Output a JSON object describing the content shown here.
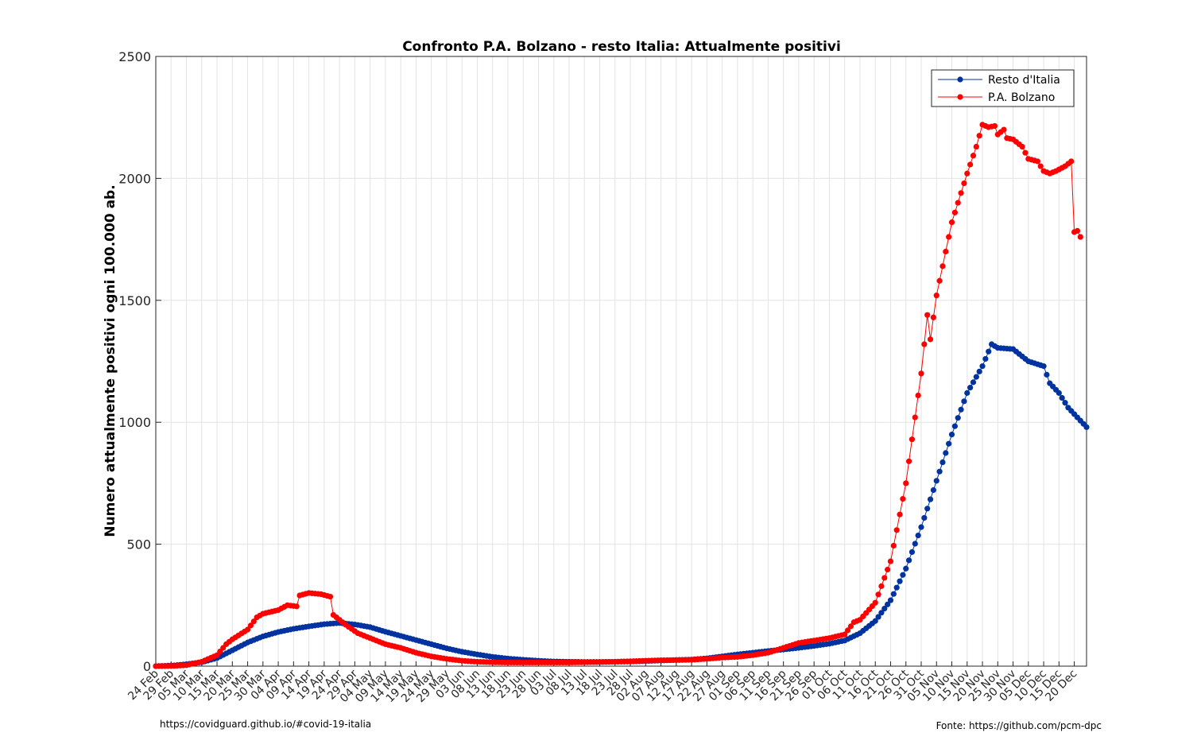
{
  "footer": {
    "left": "https://covidguard.github.io/#covid-19-italia",
    "right": "Fonte: https://github.com/pcm-dpc"
  },
  "chart_data": {
    "type": "line",
    "title": "Confronto P.A. Bolzano - resto Italia: Attualmente positivi",
    "xlabel": "",
    "ylabel": "Numero attualmente positivi ogni 100.000 ab.",
    "ylim": [
      0,
      2500
    ],
    "yticks": [
      0,
      500,
      1000,
      1500,
      2000,
      2500
    ],
    "grid": true,
    "legend_position": "top-right",
    "x_start": "2020-02-24",
    "x_end": "2020-12-24",
    "xtick_labels": [
      "24 Feb",
      "29 Feb",
      "05 Mar",
      "10 Mar",
      "15 Mar",
      "20 Mar",
      "25 Mar",
      "30 Mar",
      "04 Apr",
      "09 Apr",
      "14 Apr",
      "19 Apr",
      "24 Apr",
      "29 Apr",
      "04 May",
      "09 May",
      "14 May",
      "19 May",
      "24 May",
      "29 May",
      "03 Jun",
      "08 Jun",
      "13 Jun",
      "18 Jun",
      "23 Jun",
      "28 Jun",
      "03 Jul",
      "08 Jul",
      "13 Jul",
      "18 Jul",
      "23 Jul",
      "28 Jul",
      "02 Aug",
      "07 Aug",
      "12 Aug",
      "17 Aug",
      "22 Aug",
      "27 Aug",
      "01 Sep",
      "06 Sep",
      "11 Sep",
      "16 Sep",
      "21 Sep",
      "26 Sep",
      "01 Oct",
      "06 Oct",
      "11 Oct",
      "16 Oct",
      "21 Oct",
      "26 Oct",
      "31 Oct",
      "05 Nov",
      "10 Nov",
      "15 Nov",
      "20 Nov",
      "25 Nov",
      "30 Nov",
      "05 Dec",
      "10 Dec",
      "15 Dec",
      "20 Dec"
    ],
    "series": [
      {
        "name": "Resto d'Italia",
        "color": "#0033a0",
        "points": [
          [
            "2020-02-24",
            0
          ],
          [
            "2020-03-01",
            3
          ],
          [
            "2020-03-05",
            8
          ],
          [
            "2020-03-10",
            16
          ],
          [
            "2020-03-15",
            33
          ],
          [
            "2020-03-20",
            65
          ],
          [
            "2020-03-25",
            97
          ],
          [
            "2020-03-30",
            122
          ],
          [
            "2020-04-04",
            140
          ],
          [
            "2020-04-09",
            153
          ],
          [
            "2020-04-14",
            163
          ],
          [
            "2020-04-19",
            172
          ],
          [
            "2020-04-24",
            177
          ],
          [
            "2020-04-29",
            171
          ],
          [
            "2020-05-04",
            160
          ],
          [
            "2020-05-09",
            141
          ],
          [
            "2020-05-14",
            124
          ],
          [
            "2020-05-19",
            107
          ],
          [
            "2020-05-24",
            90
          ],
          [
            "2020-05-29",
            73
          ],
          [
            "2020-06-03",
            59
          ],
          [
            "2020-06-08",
            48
          ],
          [
            "2020-06-13",
            38
          ],
          [
            "2020-06-18",
            31
          ],
          [
            "2020-06-23",
            26
          ],
          [
            "2020-06-28",
            22
          ],
          [
            "2020-07-03",
            19
          ],
          [
            "2020-07-08",
            18
          ],
          [
            "2020-07-13",
            17
          ],
          [
            "2020-07-18",
            17
          ],
          [
            "2020-07-23",
            18
          ],
          [
            "2020-07-28",
            19
          ],
          [
            "2020-08-02",
            21
          ],
          [
            "2020-08-07",
            23
          ],
          [
            "2020-08-12",
            25
          ],
          [
            "2020-08-17",
            27
          ],
          [
            "2020-08-22",
            32
          ],
          [
            "2020-08-27",
            40
          ],
          [
            "2020-09-01",
            48
          ],
          [
            "2020-09-06",
            55
          ],
          [
            "2020-09-11",
            62
          ],
          [
            "2020-09-16",
            68
          ],
          [
            "2020-09-21",
            75
          ],
          [
            "2020-09-26",
            83
          ],
          [
            "2020-10-01",
            92
          ],
          [
            "2020-10-06",
            105
          ],
          [
            "2020-10-11",
            135
          ],
          [
            "2020-10-16",
            185
          ],
          [
            "2020-10-21",
            270
          ],
          [
            "2020-10-26",
            400
          ],
          [
            "2020-10-31",
            570
          ],
          [
            "2020-11-05",
            760
          ],
          [
            "2020-11-10",
            950
          ],
          [
            "2020-11-15",
            1120
          ],
          [
            "2020-11-20",
            1230
          ],
          [
            "2020-11-23",
            1320
          ],
          [
            "2020-11-25",
            1305
          ],
          [
            "2020-11-30",
            1300
          ],
          [
            "2020-12-05",
            1250
          ],
          [
            "2020-12-10",
            1230
          ],
          [
            "2020-12-12",
            1160
          ],
          [
            "2020-12-15",
            1120
          ],
          [
            "2020-12-18",
            1060
          ],
          [
            "2020-12-21",
            1020
          ],
          [
            "2020-12-24",
            980
          ]
        ]
      },
      {
        "name": "P.A. Bolzano",
        "color": "#ff0000",
        "points": [
          [
            "2020-02-24",
            0
          ],
          [
            "2020-03-01",
            1
          ],
          [
            "2020-03-05",
            4
          ],
          [
            "2020-03-10",
            18
          ],
          [
            "2020-03-15",
            45
          ],
          [
            "2020-03-18",
            90
          ],
          [
            "2020-03-20",
            110
          ],
          [
            "2020-03-25",
            150
          ],
          [
            "2020-03-28",
            200
          ],
          [
            "2020-03-30",
            215
          ],
          [
            "2020-04-04",
            230
          ],
          [
            "2020-04-07",
            250
          ],
          [
            "2020-04-10",
            245
          ],
          [
            "2020-04-11",
            290
          ],
          [
            "2020-04-14",
            300
          ],
          [
            "2020-04-18",
            295
          ],
          [
            "2020-04-21",
            285
          ],
          [
            "2020-04-22",
            210
          ],
          [
            "2020-04-26",
            170
          ],
          [
            "2020-04-30",
            135
          ],
          [
            "2020-05-04",
            115
          ],
          [
            "2020-05-09",
            90
          ],
          [
            "2020-05-14",
            75
          ],
          [
            "2020-05-19",
            55
          ],
          [
            "2020-05-24",
            40
          ],
          [
            "2020-05-29",
            30
          ],
          [
            "2020-06-03",
            22
          ],
          [
            "2020-06-08",
            18
          ],
          [
            "2020-06-13",
            16
          ],
          [
            "2020-06-18",
            15
          ],
          [
            "2020-06-23",
            15
          ],
          [
            "2020-06-28",
            15
          ],
          [
            "2020-07-03",
            15
          ],
          [
            "2020-07-08",
            15
          ],
          [
            "2020-07-13",
            16
          ],
          [
            "2020-07-18",
            17
          ],
          [
            "2020-07-23",
            18
          ],
          [
            "2020-07-28",
            20
          ],
          [
            "2020-08-02",
            22
          ],
          [
            "2020-08-07",
            24
          ],
          [
            "2020-08-12",
            25
          ],
          [
            "2020-08-17",
            26
          ],
          [
            "2020-08-22",
            30
          ],
          [
            "2020-08-27",
            35
          ],
          [
            "2020-09-01",
            38
          ],
          [
            "2020-09-06",
            45
          ],
          [
            "2020-09-11",
            55
          ],
          [
            "2020-09-16",
            75
          ],
          [
            "2020-09-21",
            95
          ],
          [
            "2020-09-26",
            105
          ],
          [
            "2020-10-01",
            115
          ],
          [
            "2020-10-06",
            130
          ],
          [
            "2020-10-09",
            180
          ],
          [
            "2020-10-11",
            190
          ],
          [
            "2020-10-16",
            260
          ],
          [
            "2020-10-21",
            430
          ],
          [
            "2020-10-26",
            750
          ],
          [
            "2020-10-31",
            1200
          ],
          [
            "2020-11-02",
            1440
          ],
          [
            "2020-11-03",
            1340
          ],
          [
            "2020-11-05",
            1520
          ],
          [
            "2020-11-07",
            1640
          ],
          [
            "2020-11-10",
            1820
          ],
          [
            "2020-11-15",
            2020
          ],
          [
            "2020-11-18",
            2130
          ],
          [
            "2020-11-20",
            2220
          ],
          [
            "2020-11-22",
            2210
          ],
          [
            "2020-11-24",
            2215
          ],
          [
            "2020-11-25",
            2180
          ],
          [
            "2020-11-27",
            2200
          ],
          [
            "2020-11-28",
            2165
          ],
          [
            "2020-11-30",
            2160
          ],
          [
            "2020-12-03",
            2130
          ],
          [
            "2020-12-05",
            2080
          ],
          [
            "2020-12-08",
            2070
          ],
          [
            "2020-12-10",
            2030
          ],
          [
            "2020-12-12",
            2020
          ],
          [
            "2020-12-14",
            2030
          ],
          [
            "2020-12-17",
            2050
          ],
          [
            "2020-12-19",
            2070
          ],
          [
            "2020-12-20",
            1780
          ],
          [
            "2020-12-21",
            1785
          ],
          [
            "2020-12-22",
            1760
          ]
        ]
      }
    ]
  }
}
